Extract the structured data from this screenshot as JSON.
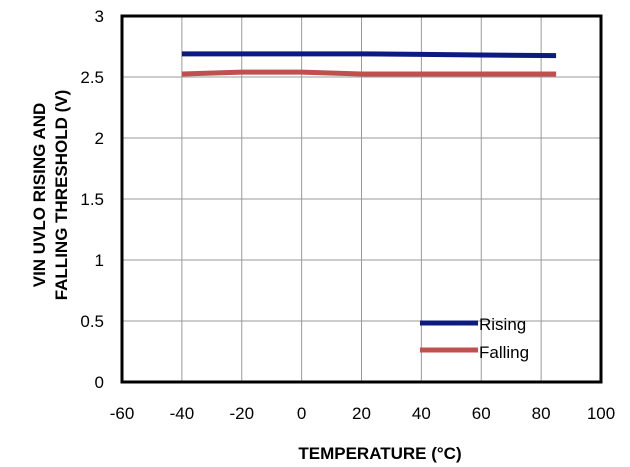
{
  "chart_data": {
    "type": "line",
    "title": "",
    "xlabel": "TEMPERATURE  (°C)",
    "ylabel_lines": [
      "VIN UVLO RISING AND",
      "FALLING THRESHOLD  (V)"
    ],
    "xlim": [
      -60,
      100
    ],
    "ylim": [
      0,
      3
    ],
    "xticks": [
      -60,
      -40,
      -20,
      0,
      20,
      40,
      60,
      80,
      100
    ],
    "xtick_labels": [
      "-60",
      "-40",
      "-20",
      "0",
      "20",
      "40",
      "60",
      "80",
      "100"
    ],
    "yticks": [
      0,
      0.5,
      1,
      1.5,
      2,
      2.5,
      3
    ],
    "ytick_labels": [
      "0",
      "0.5",
      "1",
      "1.5",
      "2",
      "2.5",
      "3"
    ],
    "grid": true,
    "legend_position": "bottom-right",
    "series": [
      {
        "name": "Rising",
        "color": "#0d1a80",
        "x": [
          -40,
          -20,
          0,
          20,
          40,
          60,
          85
        ],
        "y": [
          2.69,
          2.69,
          2.69,
          2.69,
          2.685,
          2.68,
          2.675
        ]
      },
      {
        "name": "Falling",
        "color": "#c0504d",
        "x": [
          -40,
          -20,
          0,
          20,
          40,
          60,
          85
        ],
        "y": [
          2.525,
          2.54,
          2.54,
          2.525,
          2.525,
          2.525,
          2.525
        ]
      }
    ]
  }
}
